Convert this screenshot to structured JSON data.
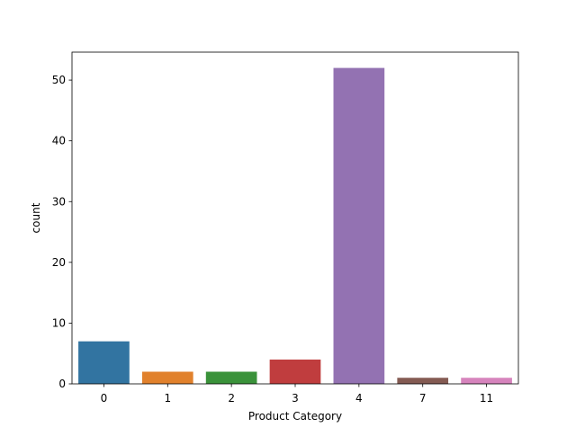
{
  "chart_data": {
    "type": "bar",
    "categories": [
      "0",
      "1",
      "2",
      "3",
      "4",
      "7",
      "11"
    ],
    "values": [
      7,
      2,
      2,
      4,
      52,
      1,
      1
    ],
    "colors": [
      "#3274a1",
      "#e1812c",
      "#3a923a",
      "#c03d3e",
      "#9372b2",
      "#845b53",
      "#d684bd"
    ],
    "xlabel": "Product Category",
    "ylabel": "count",
    "ylim": [
      0,
      54.6
    ],
    "yticks": [
      0,
      10,
      20,
      30,
      40,
      50
    ],
    "grid": false
  }
}
